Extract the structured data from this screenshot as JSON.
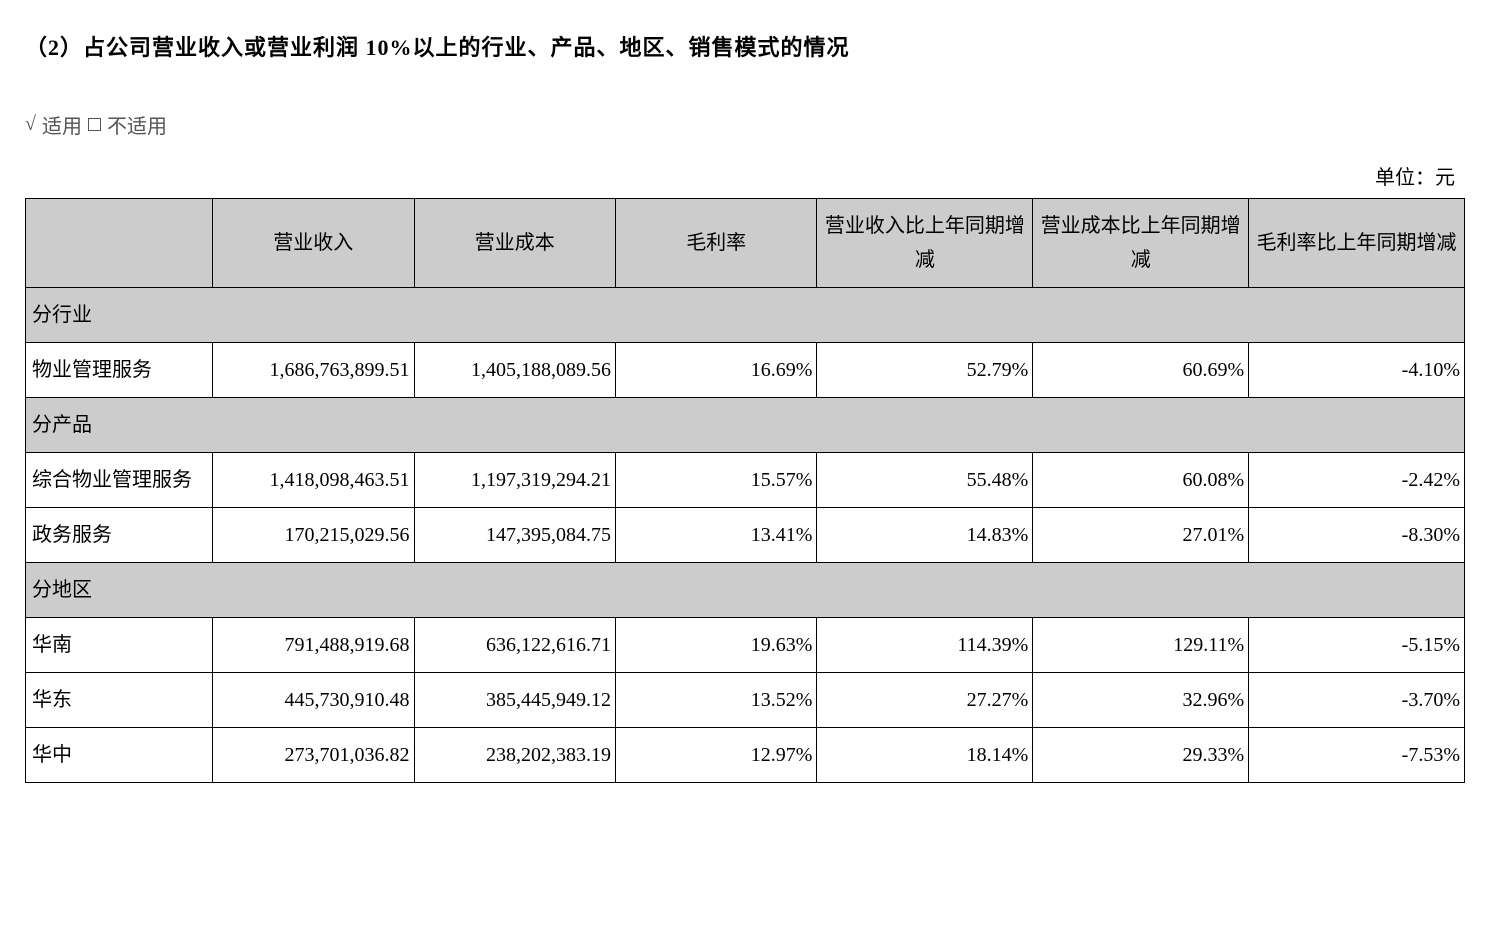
{
  "heading": "（2）占公司营业收入或营业利润 10%以上的行业、产品、地区、销售模式的情况",
  "applicability": {
    "check": "√",
    "applicable": "适用",
    "not_applicable": "不适用"
  },
  "unit_label": "单位：元",
  "table": {
    "columns": [
      "",
      "营业收入",
      "营业成本",
      "毛利率",
      "营业收入比上年同期增减",
      "营业成本比上年同期增减",
      "毛利率比上年同期增减"
    ],
    "col_widths_pct": [
      13,
      14,
      14,
      14,
      15,
      15,
      15
    ],
    "header_bg": "#cccccc",
    "border_color": "#000000",
    "fontsize": 20,
    "sections": [
      {
        "label": "分行业",
        "rows": [
          {
            "name": "物业管理服务",
            "values": [
              "1,686,763,899.51",
              "1,405,188,089.56",
              "16.69%",
              "52.79%",
              "60.69%",
              "-4.10%"
            ]
          }
        ]
      },
      {
        "label": "分产品",
        "rows": [
          {
            "name": "综合物业管理服务",
            "values": [
              "1,418,098,463.51",
              "1,197,319,294.21",
              "15.57%",
              "55.48%",
              "60.08%",
              "-2.42%"
            ]
          },
          {
            "name": "政务服务",
            "values": [
              "170,215,029.56",
              "147,395,084.75",
              "13.41%",
              "14.83%",
              "27.01%",
              "-8.30%"
            ]
          }
        ]
      },
      {
        "label": "分地区",
        "rows": [
          {
            "name": "华南",
            "values": [
              "791,488,919.68",
              "636,122,616.71",
              "19.63%",
              "114.39%",
              "129.11%",
              "-5.15%"
            ]
          },
          {
            "name": "华东",
            "values": [
              "445,730,910.48",
              "385,445,949.12",
              "13.52%",
              "27.27%",
              "32.96%",
              "-3.70%"
            ]
          },
          {
            "name": "华中",
            "values": [
              "273,701,036.82",
              "238,202,383.19",
              "12.97%",
              "18.14%",
              "29.33%",
              "-7.53%"
            ]
          }
        ]
      }
    ]
  }
}
